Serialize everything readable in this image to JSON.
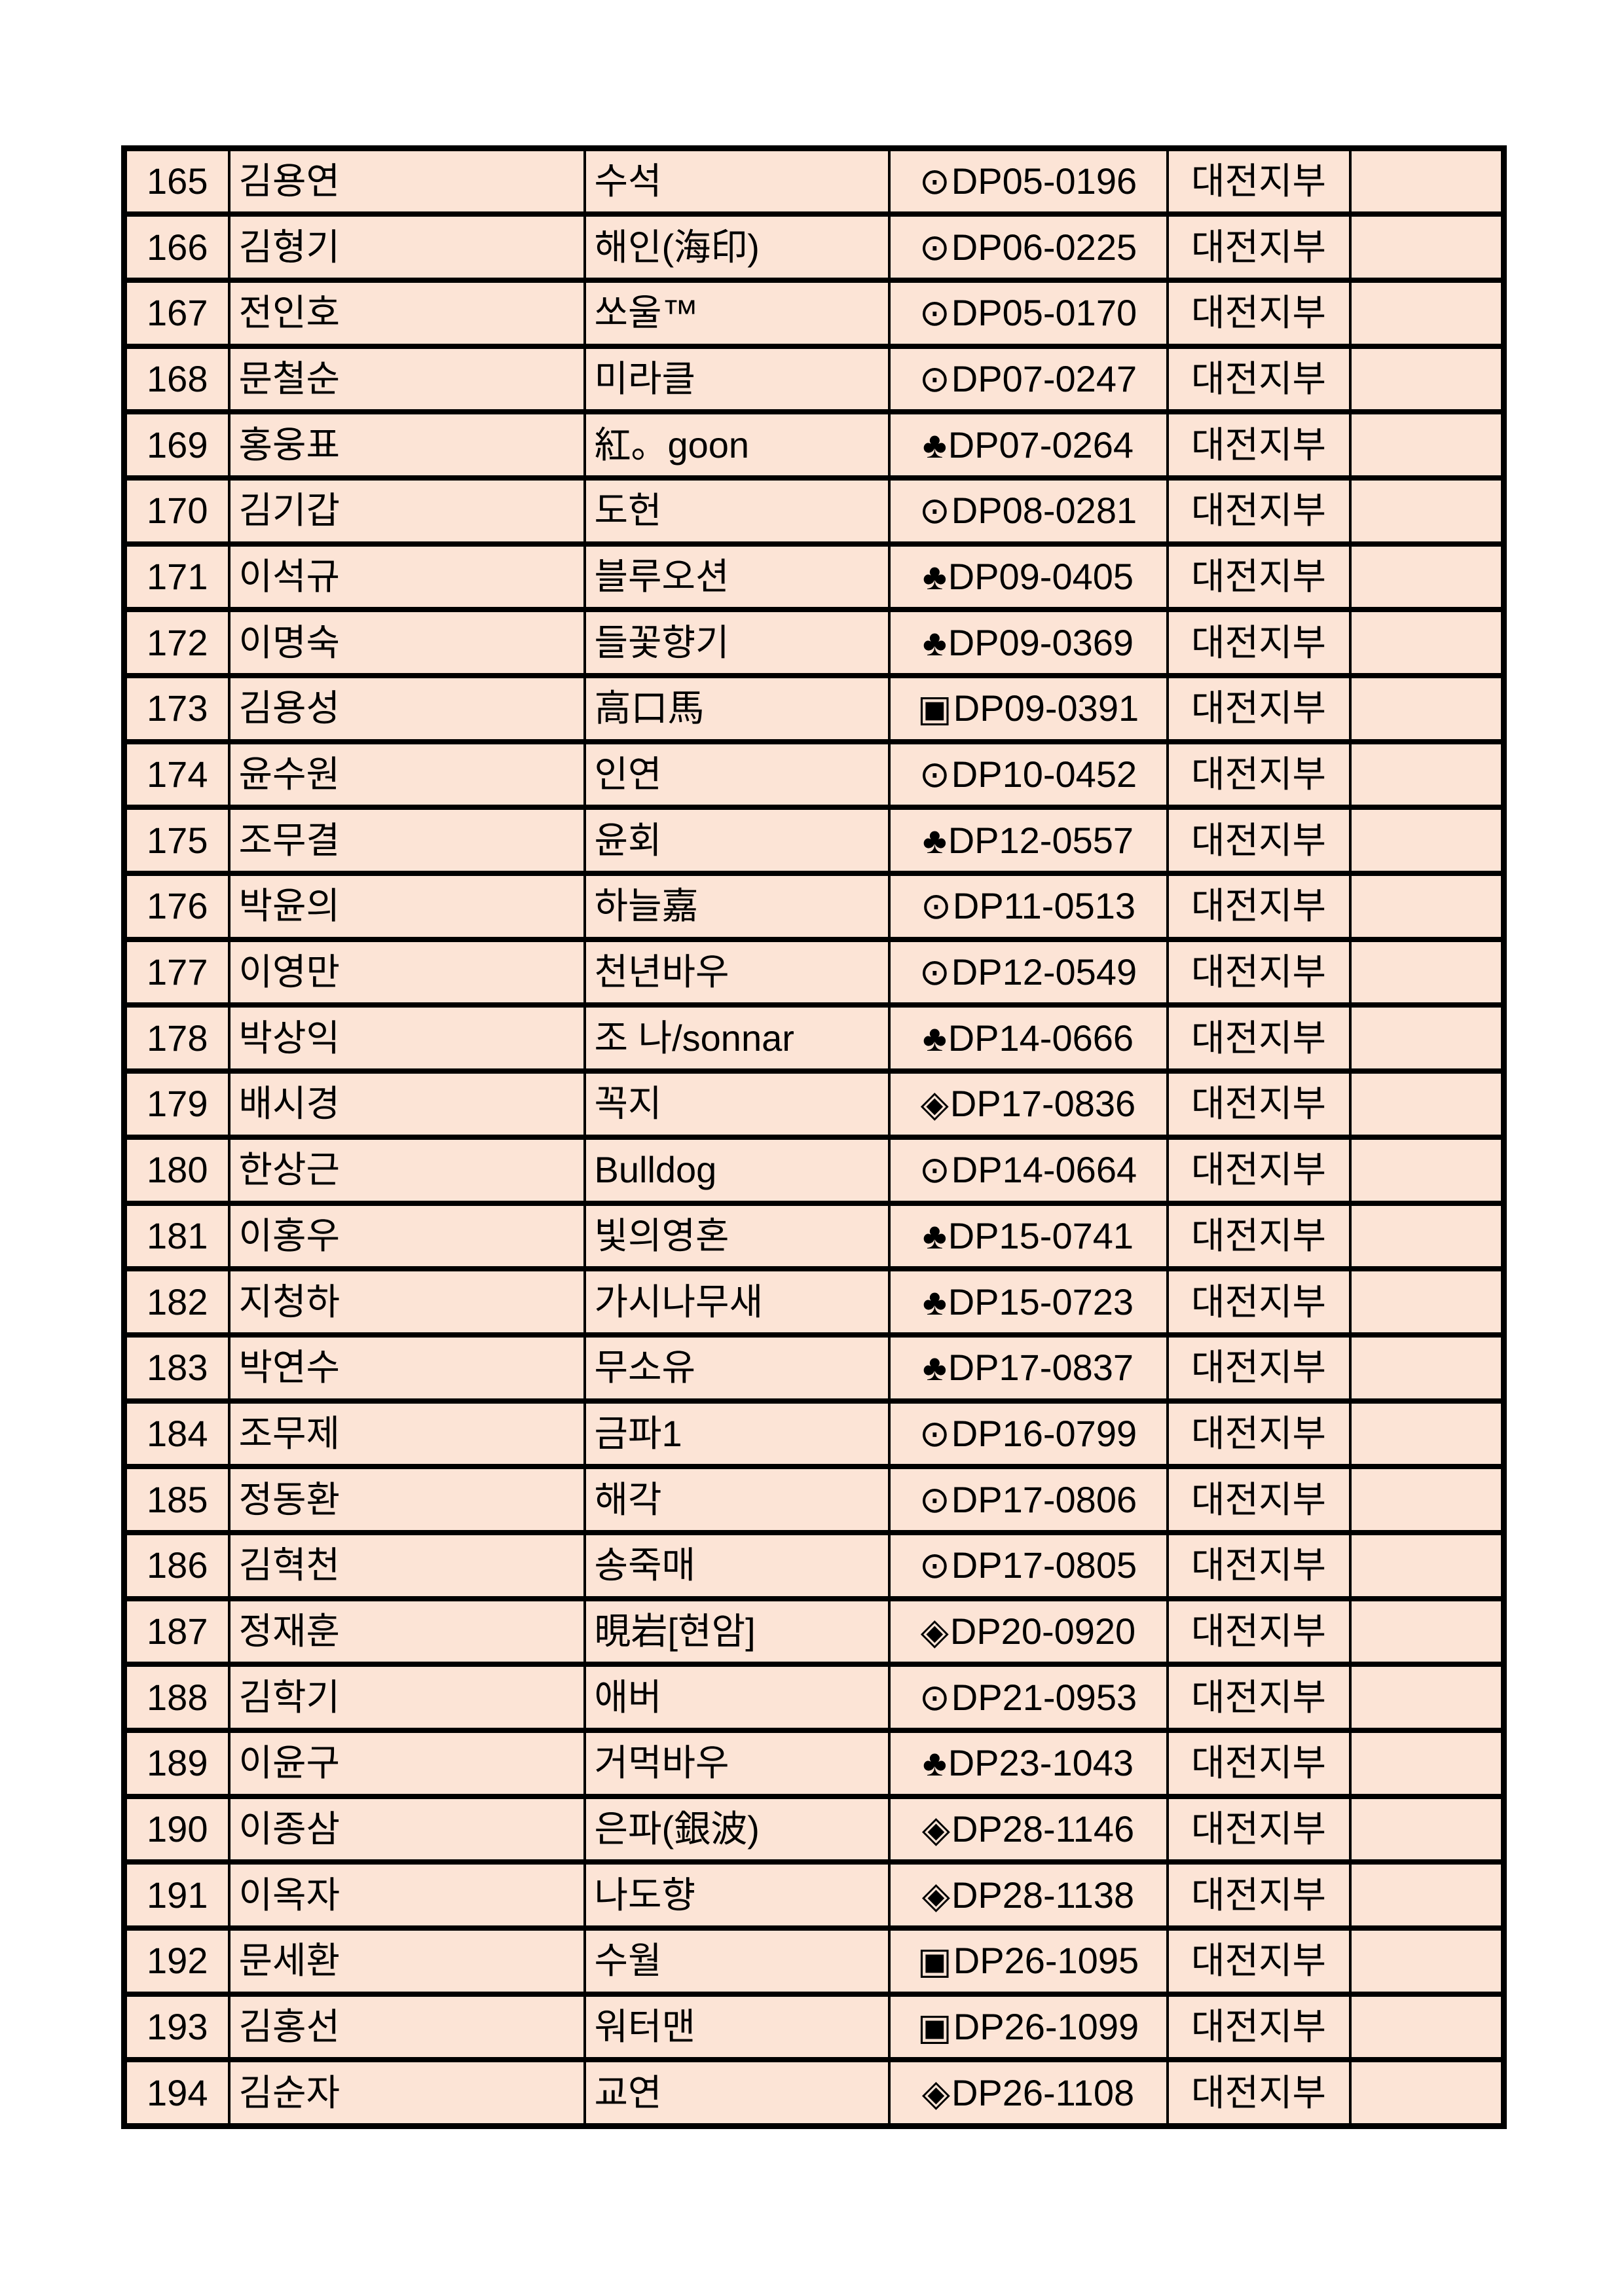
{
  "colors": {
    "page-bg": "#FFFFFF",
    "cell-fill": "#FCE4D6",
    "border": "#000000",
    "text": "#000000"
  },
  "table": {
    "columns": [
      "no",
      "name",
      "nickname",
      "member_id",
      "branch",
      "note"
    ],
    "symbols_used": [
      "⊙",
      "♣",
      "▣",
      "◈"
    ],
    "rows": [
      {
        "no": "165",
        "name": "김용연",
        "nickname": "수석",
        "symbol": "⊙",
        "id": "DP05-0196",
        "branch": "대전지부",
        "note": ""
      },
      {
        "no": "166",
        "name": "김형기",
        "nickname": "해인(海印)",
        "symbol": "⊙",
        "id": "DP06-0225",
        "branch": "대전지부",
        "note": ""
      },
      {
        "no": "167",
        "name": "전인호",
        "nickname": "쏘울™",
        "symbol": "⊙",
        "id": "DP05-0170",
        "branch": "대전지부",
        "note": ""
      },
      {
        "no": "168",
        "name": "문철순",
        "nickname": "미라클",
        "symbol": "⊙",
        "id": "DP07-0247",
        "branch": "대전지부",
        "note": ""
      },
      {
        "no": "169",
        "name": "홍웅표",
        "nickname": "紅。goon",
        "symbol": "♣",
        "id": "DP07-0264",
        "branch": "대전지부",
        "note": ""
      },
      {
        "no": "170",
        "name": "김기갑",
        "nickname": "도헌",
        "symbol": "⊙",
        "id": "DP08-0281",
        "branch": "대전지부",
        "note": ""
      },
      {
        "no": "171",
        "name": "이석규",
        "nickname": "블루오션",
        "symbol": "♣",
        "id": "DP09-0405",
        "branch": "대전지부",
        "note": ""
      },
      {
        "no": "172",
        "name": "이명숙",
        "nickname": "들꽃향기",
        "symbol": "♣",
        "id": "DP09-0369",
        "branch": "대전지부",
        "note": ""
      },
      {
        "no": "173",
        "name": "김용성",
        "nickname": "高口馬",
        "symbol": "▣",
        "id": "DP09-0391",
        "branch": "대전지부",
        "note": ""
      },
      {
        "no": "174",
        "name": "윤수원",
        "nickname": "인연",
        "symbol": "⊙",
        "id": "DP10-0452",
        "branch": "대전지부",
        "note": ""
      },
      {
        "no": "175",
        "name": "조무결",
        "nickname": "윤회",
        "symbol": "♣",
        "id": "DP12-0557",
        "branch": "대전지부",
        "note": ""
      },
      {
        "no": "176",
        "name": "박윤의",
        "nickname": "하늘嘉",
        "symbol": "⊙",
        "id": "DP11-0513",
        "branch": "대전지부",
        "note": ""
      },
      {
        "no": "177",
        "name": "이영만",
        "nickname": "천년바우",
        "symbol": "⊙",
        "id": "DP12-0549",
        "branch": "대전지부",
        "note": ""
      },
      {
        "no": "178",
        "name": "박상익",
        "nickname": "조 나/sonnar",
        "symbol": "♣",
        "id": "DP14-0666",
        "branch": "대전지부",
        "note": ""
      },
      {
        "no": "179",
        "name": "배시경",
        "nickname": "꼭지",
        "symbol": "◈",
        "id": "DP17-0836",
        "branch": "대전지부",
        "note": ""
      },
      {
        "no": "180",
        "name": "한상근",
        "nickname": "Bulldog",
        "symbol": "⊙",
        "id": "DP14-0664",
        "branch": "대전지부",
        "note": ""
      },
      {
        "no": "181",
        "name": "이홍우",
        "nickname": "빛의영혼",
        "symbol": "♣",
        "id": "DP15-0741",
        "branch": "대전지부",
        "note": ""
      },
      {
        "no": "182",
        "name": "지청하",
        "nickname": "가시나무새",
        "symbol": "♣",
        "id": "DP15-0723",
        "branch": "대전지부",
        "note": ""
      },
      {
        "no": "183",
        "name": "박연수",
        "nickname": "무소유",
        "symbol": "♣",
        "id": "DP17-0837",
        "branch": "대전지부",
        "note": ""
      },
      {
        "no": "184",
        "name": "조무제",
        "nickname": "금파1",
        "symbol": "⊙",
        "id": "DP16-0799",
        "branch": "대전지부",
        "note": ""
      },
      {
        "no": "185",
        "name": "정동환",
        "nickname": "해각",
        "symbol": "⊙",
        "id": "DP17-0806",
        "branch": "대전지부",
        "note": ""
      },
      {
        "no": "186",
        "name": "김혁천",
        "nickname": "송죽매",
        "symbol": "⊙",
        "id": "DP17-0805",
        "branch": "대전지부",
        "note": ""
      },
      {
        "no": "187",
        "name": "정재훈",
        "nickname": "晛岩[현암]",
        "symbol": "◈",
        "id": "DP20-0920",
        "branch": "대전지부",
        "note": ""
      },
      {
        "no": "188",
        "name": "김학기",
        "nickname": "애버",
        "symbol": "⊙",
        "id": "DP21-0953",
        "branch": "대전지부",
        "note": ""
      },
      {
        "no": "189",
        "name": "이윤구",
        "nickname": "거먹바우",
        "symbol": "♣",
        "id": "DP23-1043",
        "branch": "대전지부",
        "note": ""
      },
      {
        "no": "190",
        "name": "이종삼",
        "nickname": "은파(銀波)",
        "symbol": "◈",
        "id": "DP28-1146",
        "branch": "대전지부",
        "note": ""
      },
      {
        "no": "191",
        "name": "이옥자",
        "nickname": "나도향",
        "symbol": "◈",
        "id": "DP28-1138",
        "branch": "대전지부",
        "note": ""
      },
      {
        "no": "192",
        "name": "문세환",
        "nickname": "수월",
        "symbol": "▣",
        "id": "DP26-1095",
        "branch": "대전지부",
        "note": ""
      },
      {
        "no": "193",
        "name": "김홍선",
        "nickname": "워터맨",
        "symbol": "▣",
        "id": "DP26-1099",
        "branch": "대전지부",
        "note": ""
      },
      {
        "no": "194",
        "name": "김순자",
        "nickname": "교연",
        "symbol": "◈",
        "id": "DP26-1108",
        "branch": "대전지부",
        "note": ""
      }
    ]
  }
}
